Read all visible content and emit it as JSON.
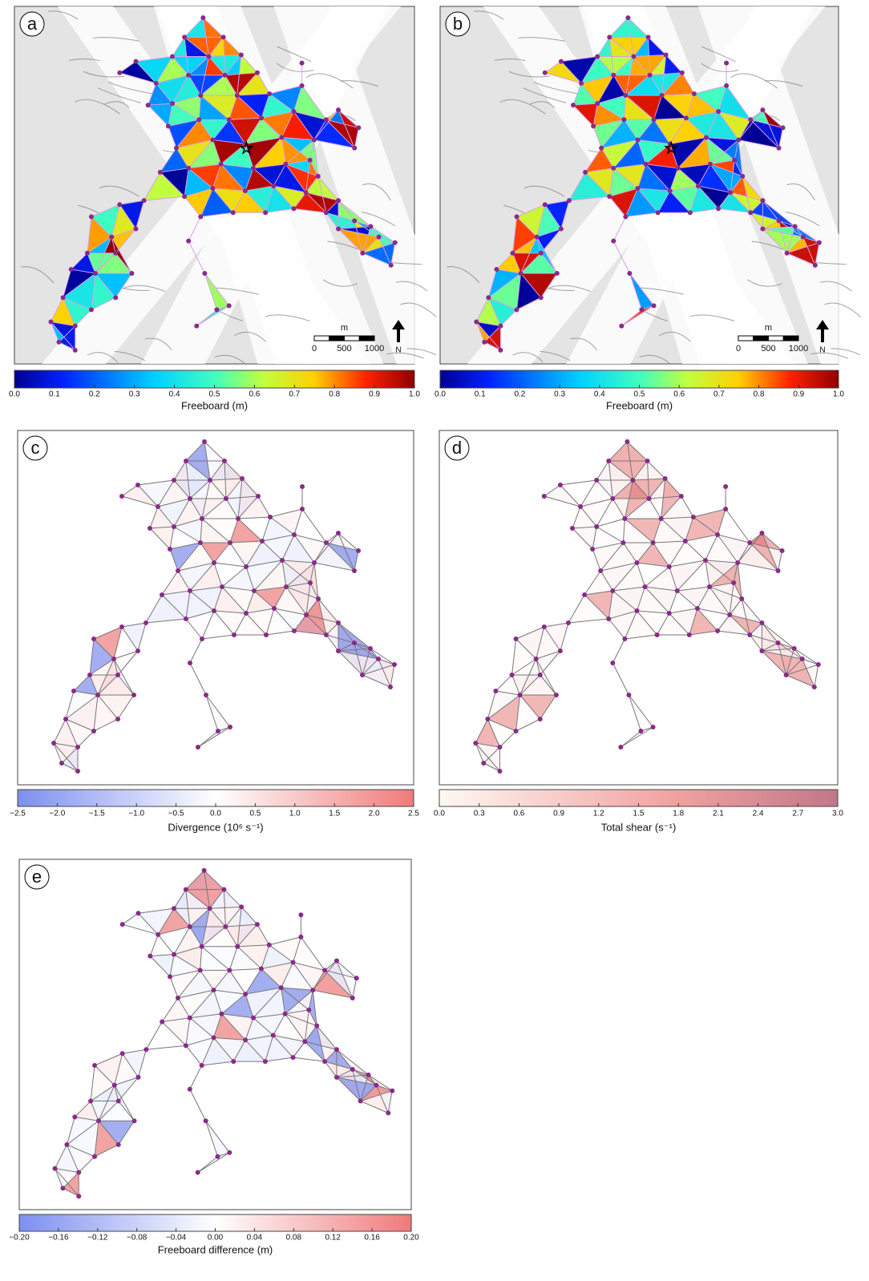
{
  "panels": [
    {
      "label": "a",
      "scale_bar": {
        "unit": "m",
        "ticks": [
          0,
          500,
          1000
        ]
      },
      "north": "N",
      "colorbar": {
        "label": "Freeboard (m)",
        "lim": [
          0,
          1
        ],
        "ticks": [
          {
            "value": 0,
            "label": "0.0"
          },
          0.1,
          0.2,
          0.3,
          0.4,
          0.5,
          0.6,
          0.7,
          0.8,
          0.9,
          {
            "value": 1,
            "label": "1.0"
          }
        ]
      }
    },
    {
      "label": "b",
      "scale_bar": {
        "unit": "m",
        "ticks": [
          0,
          500,
          1000
        ]
      },
      "north": "N",
      "colorbar": {
        "label": "Freeboard (m)",
        "lim": [
          0,
          1
        ],
        "ticks": [
          {
            "value": 0,
            "label": "0.0"
          },
          0.1,
          0.2,
          0.3,
          0.4,
          0.5,
          0.6,
          0.7,
          0.8,
          0.9,
          {
            "value": 1,
            "label": "1.0"
          }
        ]
      }
    },
    {
      "label": "c",
      "colorbar": {
        "label": "Divergence (10⁶ s⁻¹)",
        "lim": [
          -2.5,
          2.5
        ],
        "ticks": [
          {
            "value": -2.5,
            "label": "−2.5"
          },
          {
            "value": -2,
            "label": "−2.0"
          },
          {
            "value": -1.5,
            "label": "−1.5"
          },
          {
            "value": -1,
            "label": "−1.0"
          },
          {
            "value": -0.5,
            "label": "−0.5"
          },
          {
            "value": 0,
            "label": "0.0"
          },
          0.5,
          {
            "value": 1,
            "label": "1.0"
          },
          1.5,
          {
            "value": 2,
            "label": "2.0"
          },
          2.5
        ]
      }
    },
    {
      "label": "d",
      "colorbar": {
        "label": "Total shear (s⁻¹)",
        "lim": [
          0,
          3
        ],
        "ticks": [
          {
            "value": 0,
            "label": "0.0"
          },
          0.3,
          0.6,
          0.9,
          1.2,
          1.5,
          1.8,
          2.1,
          2.4,
          2.7,
          {
            "value": 3,
            "label": "3.0"
          }
        ]
      }
    },
    {
      "label": "e",
      "colorbar": {
        "label": "Freeboard difference (m)",
        "lim": [
          -0.2,
          0.2
        ],
        "ticks": [
          {
            "value": -0.2,
            "label": "−0.20"
          },
          {
            "value": -0.16,
            "label": "−0.16"
          },
          {
            "value": -0.12,
            "label": "−0.12"
          },
          {
            "value": -0.08,
            "label": "−0.08"
          },
          {
            "value": -0.04,
            "label": "−0.04"
          },
          {
            "value": 0,
            "label": "0.00"
          },
          0.04,
          0.08,
          0.12,
          0.16,
          {
            "value": 0.2,
            "label": "0.20"
          }
        ]
      }
    }
  ]
}
